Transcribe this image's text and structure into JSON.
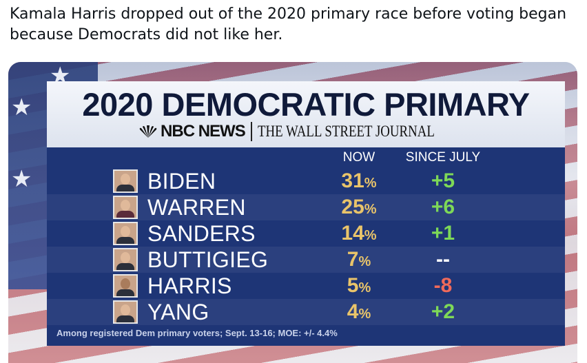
{
  "tweet": {
    "text": "Kamala Harris dropped out of the 2020 primary race before voting began because Democrats did not like her."
  },
  "graphic": {
    "title": "2020 DEMOCRATIC PRIMARY",
    "source_nbc": "NBC NEWS",
    "source_wsj": "THE WALL STREET JOURNAL",
    "col_now": "NOW",
    "col_since": "SINCE JULY",
    "footnote": "Among registered Dem primary voters; Sept. 13-16; MOE: +/- 4.4%",
    "accent_now": "#e9c46a",
    "accent_up": "#7ed957",
    "accent_down": "#f06a5a",
    "rows": [
      {
        "name": "BIDEN",
        "now": "31",
        "since": "+5"
      },
      {
        "name": "WARREN",
        "now": "25",
        "since": "+6"
      },
      {
        "name": "SANDERS",
        "now": "14",
        "since": "+1"
      },
      {
        "name": "BUTTIGIEG",
        "now": "7",
        "since": "--"
      },
      {
        "name": "HARRIS",
        "now": "5",
        "since": "-8"
      },
      {
        "name": "YANG",
        "now": "4",
        "since": "+2"
      }
    ],
    "percent_sign": "%"
  }
}
